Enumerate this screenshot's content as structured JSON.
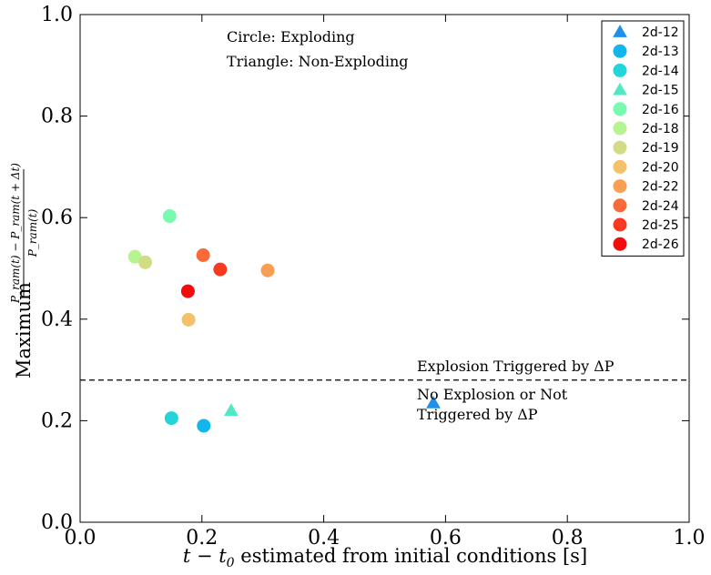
{
  "chart_data": {
    "type": "scatter",
    "xlabel_parts": [
      "t − t",
      "0",
      " estimated from initial conditions [s]"
    ],
    "ylabel_prefix": "Maximum",
    "ylabel_numerator": "P_ram(t) − P_ram(t + Δt)",
    "ylabel_denominator": "P_ram(t)",
    "xlim": [
      0.0,
      1.0
    ],
    "ylim": [
      0.0,
      1.0
    ],
    "x_ticks": [
      "0.0",
      "0.2",
      "0.4",
      "0.6",
      "0.8",
      "1.0"
    ],
    "y_ticks": [
      "0.0",
      "0.2",
      "0.4",
      "0.6",
      "0.8",
      "1.0"
    ],
    "grid": false,
    "legend_placement": "top-right",
    "annotations": {
      "marker_key_circle": "Circle: Exploding",
      "marker_key_triangle": "Triangle: Non-Exploding",
      "threshold_above": "Explosion Triggered by ΔP",
      "threshold_below_line1": "No Explosion or Not",
      "threshold_below_line2": "Triggered by ΔP"
    },
    "threshold": {
      "y": 0.28,
      "style": "dashed"
    },
    "series": [
      {
        "name": "2d-12",
        "marker": "triangle",
        "color": "#1f8fe8",
        "points": [
          [
            0.58,
            0.235
          ]
        ]
      },
      {
        "name": "2d-13",
        "marker": "circle",
        "color": "#12b6ea",
        "points": [
          [
            0.203,
            0.19
          ]
        ]
      },
      {
        "name": "2d-14",
        "marker": "circle",
        "color": "#23d5d8",
        "points": [
          [
            0.15,
            0.205
          ]
        ]
      },
      {
        "name": "2d-15",
        "marker": "triangle",
        "color": "#50e9c3",
        "points": [
          [
            0.248,
            0.22
          ]
        ]
      },
      {
        "name": "2d-16",
        "marker": "circle",
        "color": "#78fbae",
        "points": [
          [
            0.147,
            0.603
          ]
        ]
      },
      {
        "name": "2d-18",
        "marker": "circle",
        "color": "#b6f490",
        "points": [
          [
            0.09,
            0.523
          ]
        ]
      },
      {
        "name": "2d-19",
        "marker": "circle",
        "color": "#d2dc85",
        "points": [
          [
            0.107,
            0.512
          ]
        ]
      },
      {
        "name": "2d-20",
        "marker": "circle",
        "color": "#f4c06a",
        "points": [
          [
            0.178,
            0.399
          ]
        ]
      },
      {
        "name": "2d-22",
        "marker": "circle",
        "color": "#fa9e52",
        "points": [
          [
            0.308,
            0.496
          ]
        ]
      },
      {
        "name": "2d-24",
        "marker": "circle",
        "color": "#fa6a38",
        "points": [
          [
            0.202,
            0.526
          ]
        ]
      },
      {
        "name": "2d-25",
        "marker": "circle",
        "color": "#f93a20",
        "points": [
          [
            0.23,
            0.498
          ]
        ]
      },
      {
        "name": "2d-26",
        "marker": "circle",
        "color": "#f20c0c",
        "points": [
          [
            0.177,
            0.455
          ]
        ]
      }
    ]
  }
}
